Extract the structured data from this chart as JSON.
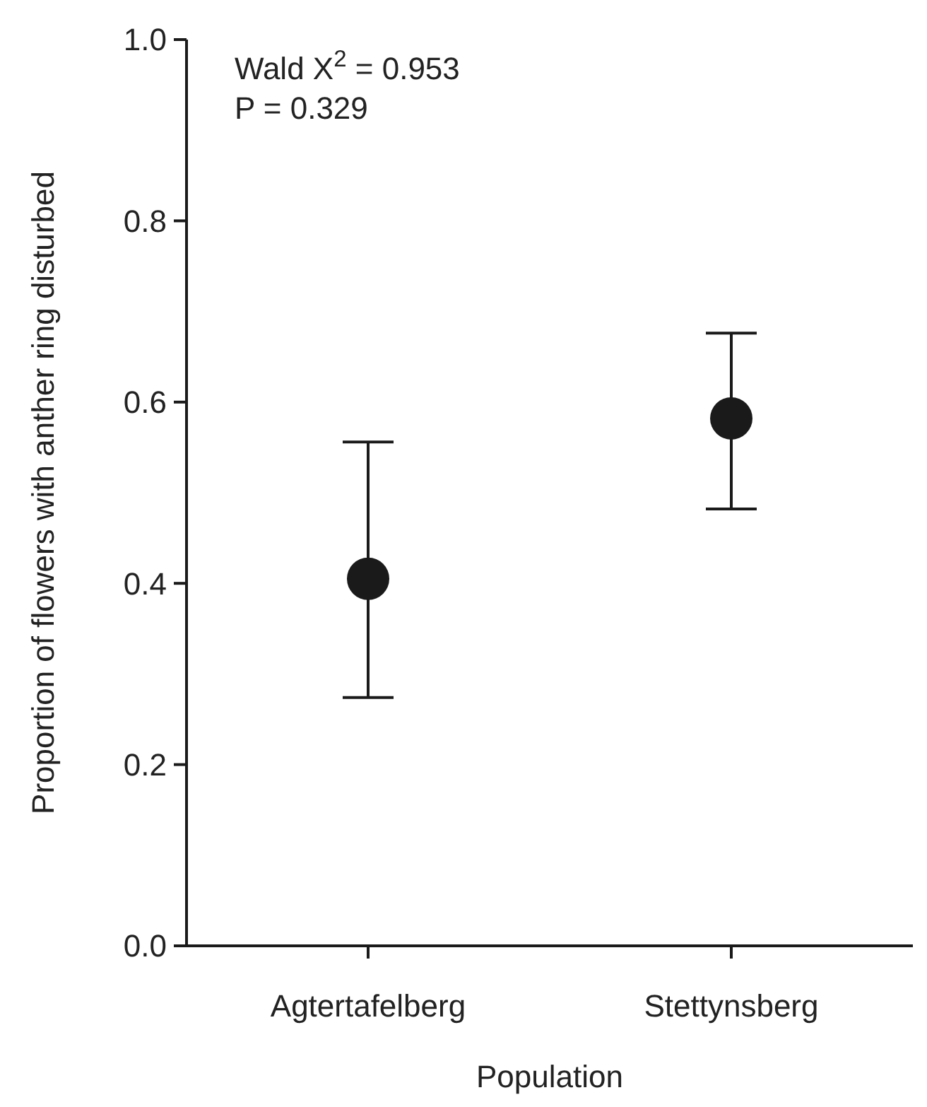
{
  "chart_data": {
    "type": "scatter",
    "xlabel": "Population",
    "ylabel": "Proportion of flowers with anther ring disturbed",
    "categories": [
      "Agtertafelberg",
      "Stettynsberg"
    ],
    "values": [
      0.405,
      0.582
    ],
    "errors": [
      [
        0.274,
        0.556
      ],
      [
        0.482,
        0.676
      ]
    ],
    "color": "#1a1a1a",
    "marker": "circle",
    "grid": false,
    "ylim": [
      0,
      1
    ],
    "yticks": [
      {
        "value": 0,
        "label": "0.0"
      },
      {
        "value": 0.2,
        "label": "0.2"
      },
      {
        "value": 0.4,
        "label": "0.4"
      },
      {
        "value": 0.6,
        "label": "0.6"
      },
      {
        "value": 0.8,
        "label": "0.8"
      },
      {
        "value": 1,
        "label": "1.0"
      }
    ],
    "annotations": [
      "Wald X$^{2}$ = 0.953",
      "P = 0.329"
    ]
  }
}
